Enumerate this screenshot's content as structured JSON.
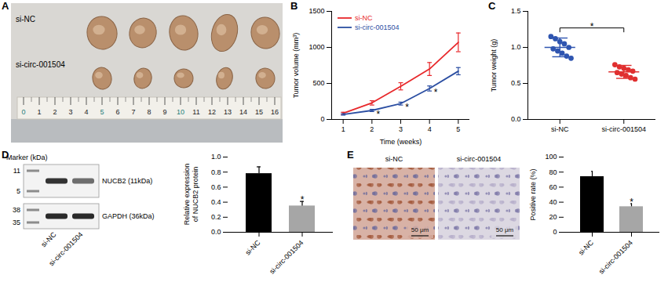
{
  "chart_data": [
    {
      "panel_label": "B",
      "type": "line",
      "xlabel": "Time (weeks)",
      "ylabel": "Tumor volume (mm³)",
      "x": [
        1,
        2,
        3,
        4,
        5
      ],
      "series": [
        {
          "name": "si-NC",
          "color": "#e8282b",
          "values": [
            85,
            230,
            460,
            700,
            1070
          ],
          "errors": [
            15,
            30,
            50,
            90,
            130
          ]
        },
        {
          "name": "si-circ-001504",
          "color": "#2b4ea2",
          "values": [
            70,
            125,
            220,
            430,
            670
          ],
          "errors": [
            10,
            15,
            20,
            35,
            50
          ]
        }
      ],
      "xlim": [
        0.6,
        5.4
      ],
      "xticks": [
        1,
        2,
        3,
        4,
        5
      ],
      "ylim": [
        0,
        1500
      ],
      "yticks": [
        0,
        500,
        1000,
        1500
      ],
      "legend": "top-left",
      "annotations": [
        {
          "x": 2,
          "series": "si-circ-001504",
          "text": "*"
        },
        {
          "x": 3,
          "series": "si-circ-001504",
          "text": "*"
        },
        {
          "x": 4,
          "series": "si-circ-001504",
          "text": "*"
        }
      ]
    },
    {
      "panel_label": "C",
      "type": "scatter",
      "ylabel": "Tumor weight (g)",
      "categories": [
        "si-NC",
        "si-circ-001504"
      ],
      "points": [
        [
          1.15,
          1.12,
          1.08,
          1.05,
          1.0,
          0.98,
          0.95,
          0.92,
          0.88,
          0.85
        ],
        [
          0.76,
          0.73,
          0.71,
          0.69,
          0.67,
          0.65,
          0.63,
          0.61,
          0.58,
          0.56
        ]
      ],
      "means": [
        1.0,
        0.66
      ],
      "errors": [
        0.13,
        0.09
      ],
      "colors": [
        "#2f55b0",
        "#e03030"
      ],
      "ylim": [
        0,
        1.5
      ],
      "yticks": [
        {
          "value": 0,
          "label": "0.0"
        },
        0.5,
        {
          "value": 1,
          "label": "1.0"
        },
        1.5
      ],
      "annotations": [
        {
          "text": "*"
        }
      ]
    },
    {
      "panel_label": "D",
      "type": "bar",
      "ylabel": "Relative expression of NUCB2 protein",
      "categories": [
        "si-NC",
        "si-circ-001504"
      ],
      "values": [
        0.78,
        0.35
      ],
      "errors": [
        0.09,
        0.06
      ],
      "colors": [
        "#000000",
        "#a6a6a6"
      ],
      "ylim": [
        0,
        1
      ],
      "yticks": [
        {
          "value": 0,
          "label": "0.0"
        },
        0.2,
        0.4,
        0.6,
        0.8,
        {
          "value": 1,
          "label": "1.0"
        }
      ],
      "annotations": [
        {
          "category": "si-circ-001504",
          "text": "*"
        }
      ]
    },
    {
      "panel_label": "E",
      "type": "bar",
      "ylabel": "Positive rate (%)",
      "categories": [
        "si-NC",
        "si-circ-001504"
      ],
      "values": [
        74,
        34
      ],
      "errors": [
        7,
        4
      ],
      "colors": [
        "#000000",
        "#a6a6a6"
      ],
      "ylim": [
        0,
        100
      ],
      "yticks": [
        0,
        20,
        40,
        60,
        80,
        100
      ],
      "annotations": [
        {
          "category": "si-circ-001504",
          "text": "*"
        }
      ]
    }
  ],
  "photo_A": {
    "panel_label": "A",
    "rows": [
      "si-NC",
      "si-circ-001504"
    ],
    "ruler": [
      0,
      1,
      2,
      3,
      4,
      5,
      6,
      7,
      8,
      9,
      10,
      11,
      12,
      13,
      14,
      15,
      16
    ]
  },
  "blot_D": {
    "marker_title": "Marker (kDa)",
    "blots": [
      {
        "name": "NUCB2 (11kDa)",
        "markers": [
          11,
          5
        ]
      },
      {
        "name": "GAPDH (36kDa)",
        "markers": [
          38,
          35
        ]
      }
    ],
    "lanes": [
      "si-NC",
      "si-circ-001504"
    ]
  },
  "images_E": {
    "images": [
      {
        "title": "si-NC",
        "scale_bar": "50 μm"
      },
      {
        "title": "si-circ-001504",
        "scale_bar": "50 μm"
      }
    ]
  }
}
